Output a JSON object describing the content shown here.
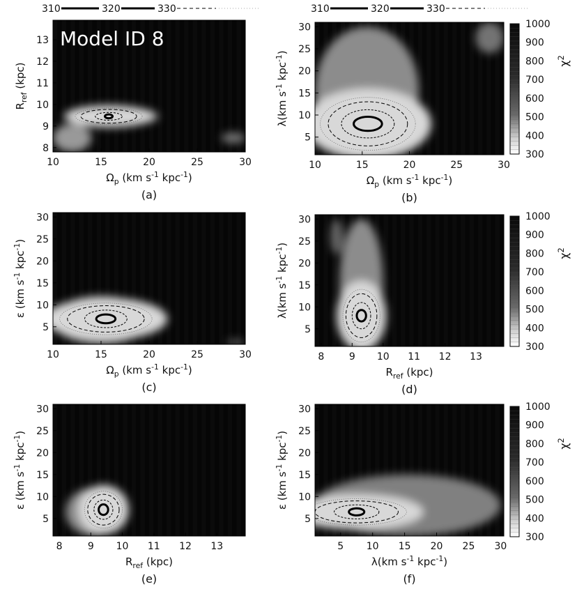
{
  "figure": {
    "legend": [
      {
        "label": "310",
        "style": "solid-thin"
      },
      {
        "label": "320",
        "style": "solid-thick"
      },
      {
        "label": "330",
        "style": "dashed"
      }
    ],
    "colorbar": {
      "label": "χ2",
      "ticks": [
        300,
        400,
        500,
        600,
        700,
        800,
        900,
        1000
      ]
    }
  },
  "chart_data": [
    {
      "id": "a",
      "type": "heatmap",
      "caption": "(a)",
      "annotation": "Model ID 8",
      "xlabel": "Ωp (km s-1 kpc-1)",
      "ylabel": "Rref (kpc)",
      "xlim": [
        10,
        30
      ],
      "ylim": [
        7.8,
        13.9
      ],
      "xticks": [
        10,
        15,
        20,
        25,
        30
      ],
      "yticks": [
        8,
        9,
        10,
        11,
        12,
        13
      ],
      "minimum": {
        "x": 15.8,
        "y": 9.45
      },
      "contours": {
        "310": [
          0.4,
          0.09
        ],
        "320": [
          1.4,
          0.18
        ],
        "330": [
          2.9,
          0.32
        ]
      },
      "bright_regions": [
        {
          "x": [
            10,
            14
          ],
          "y": [
            7.8,
            9.1
          ],
          "level": 0.6
        },
        {
          "x": [
            12,
            21
          ],
          "y": [
            9.0,
            9.9
          ],
          "level": 0.55
        },
        {
          "x": [
            27.5,
            30
          ],
          "y": [
            8.2,
            8.7
          ],
          "level": 0.45
        }
      ]
    },
    {
      "id": "b",
      "type": "heatmap",
      "caption": "(b)",
      "xlabel": "Ωp (km s-1 kpc-1)",
      "ylabel": "λ(km s-1 kpc-1)",
      "xlim": [
        10,
        30
      ],
      "ylim": [
        1,
        31
      ],
      "xticks": [
        10,
        15,
        20,
        25,
        30
      ],
      "yticks": [
        5,
        10,
        15,
        20,
        25,
        30
      ],
      "minimum": {
        "x": 15.6,
        "y": 8
      },
      "contours": {
        "310": [
          1.5,
          1.6
        ],
        "320": [
          2.8,
          3.2
        ],
        "330": [
          4.2,
          5.0
        ]
      },
      "bright_regions": [
        {
          "x": [
            10,
            21
          ],
          "y": [
            1,
            30
          ],
          "level": 0.55
        },
        {
          "x": [
            27,
            30
          ],
          "y": [
            24,
            31
          ],
          "level": 0.45
        }
      ]
    },
    {
      "id": "c",
      "type": "heatmap",
      "caption": "(c)",
      "xlabel": "Ωp (km s-1 kpc-1)",
      "ylabel": "ε (km s-1 kpc-1)",
      "xlim": [
        10,
        30
      ],
      "ylim": [
        1,
        31
      ],
      "xticks": [
        10,
        15,
        20,
        25,
        30
      ],
      "yticks": [
        5,
        10,
        15,
        20,
        25,
        30
      ],
      "minimum": {
        "x": 15.5,
        "y": 6.8
      },
      "contours": {
        "310": [
          1.0,
          1.0
        ],
        "320": [
          2.2,
          2.0
        ],
        "330": [
          4.0,
          3.0
        ]
      },
      "bright_regions": [
        {
          "x": [
            10,
            20
          ],
          "y": [
            1,
            12
          ],
          "level": 0.6
        },
        {
          "x": [
            28,
            30
          ],
          "y": [
            1,
            2
          ],
          "level": 0.45
        }
      ]
    },
    {
      "id": "d",
      "type": "heatmap",
      "caption": "(d)",
      "xlabel": "Rref (kpc)",
      "ylabel": "λ(km s-1 kpc-1)",
      "xlim": [
        7.8,
        13.9
      ],
      "ylim": [
        1,
        31
      ],
      "xticks": [
        8,
        9,
        10,
        11,
        12,
        13
      ],
      "yticks": [
        5,
        10,
        15,
        20,
        25,
        30
      ],
      "minimum": {
        "x": 9.3,
        "y": 8
      },
      "contours": {
        "310": [
          0.15,
          1.3
        ],
        "320": [
          0.3,
          3.0
        ],
        "330": [
          0.5,
          5.0
        ]
      },
      "bright_regions": [
        {
          "x": [
            8.6,
            10.0
          ],
          "y": [
            1,
            30
          ],
          "level": 0.55
        },
        {
          "x": [
            8.3,
            8.7
          ],
          "y": [
            22,
            30
          ],
          "level": 0.4
        }
      ]
    },
    {
      "id": "e",
      "type": "heatmap",
      "caption": "(e)",
      "xlabel": "Rref (kpc)",
      "ylabel": "ε (km s-1 kpc-1)",
      "xlim": [
        7.8,
        13.9
      ],
      "ylim": [
        1,
        31
      ],
      "xticks": [
        8,
        9,
        10,
        11,
        12,
        13
      ],
      "yticks": [
        5,
        10,
        15,
        20,
        25,
        30
      ],
      "minimum": {
        "x": 9.4,
        "y": 7
      },
      "contours": {
        "310": [
          0.15,
          1.2
        ],
        "320": [
          0.3,
          2.2
        ],
        "330": [
          0.5,
          3.5
        ]
      },
      "bright_regions": [
        {
          "x": [
            8.2,
            10.0
          ],
          "y": [
            1,
            12
          ],
          "level": 0.55
        }
      ]
    },
    {
      "id": "f",
      "type": "heatmap",
      "caption": "(f)",
      "xlabel": "λ(km s-1 kpc-1)",
      "ylabel": "ε (km s-1 kpc-1)",
      "xlim": [
        1,
        30.5
      ],
      "ylim": [
        1,
        31
      ],
      "xticks": [
        5,
        10,
        15,
        20,
        25,
        30
      ],
      "yticks": [
        5,
        10,
        15,
        20,
        25,
        30
      ],
      "minimum": {
        "x": 7.5,
        "y": 6.5
      },
      "contours": {
        "310": [
          1.2,
          0.8
        ],
        "320": [
          3.5,
          1.6
        ],
        "330": [
          6.5,
          2.5
        ]
      },
      "bright_regions": [
        {
          "x": [
            1,
            30
          ],
          "y": [
            1,
            15
          ],
          "level": 0.5
        }
      ]
    }
  ]
}
